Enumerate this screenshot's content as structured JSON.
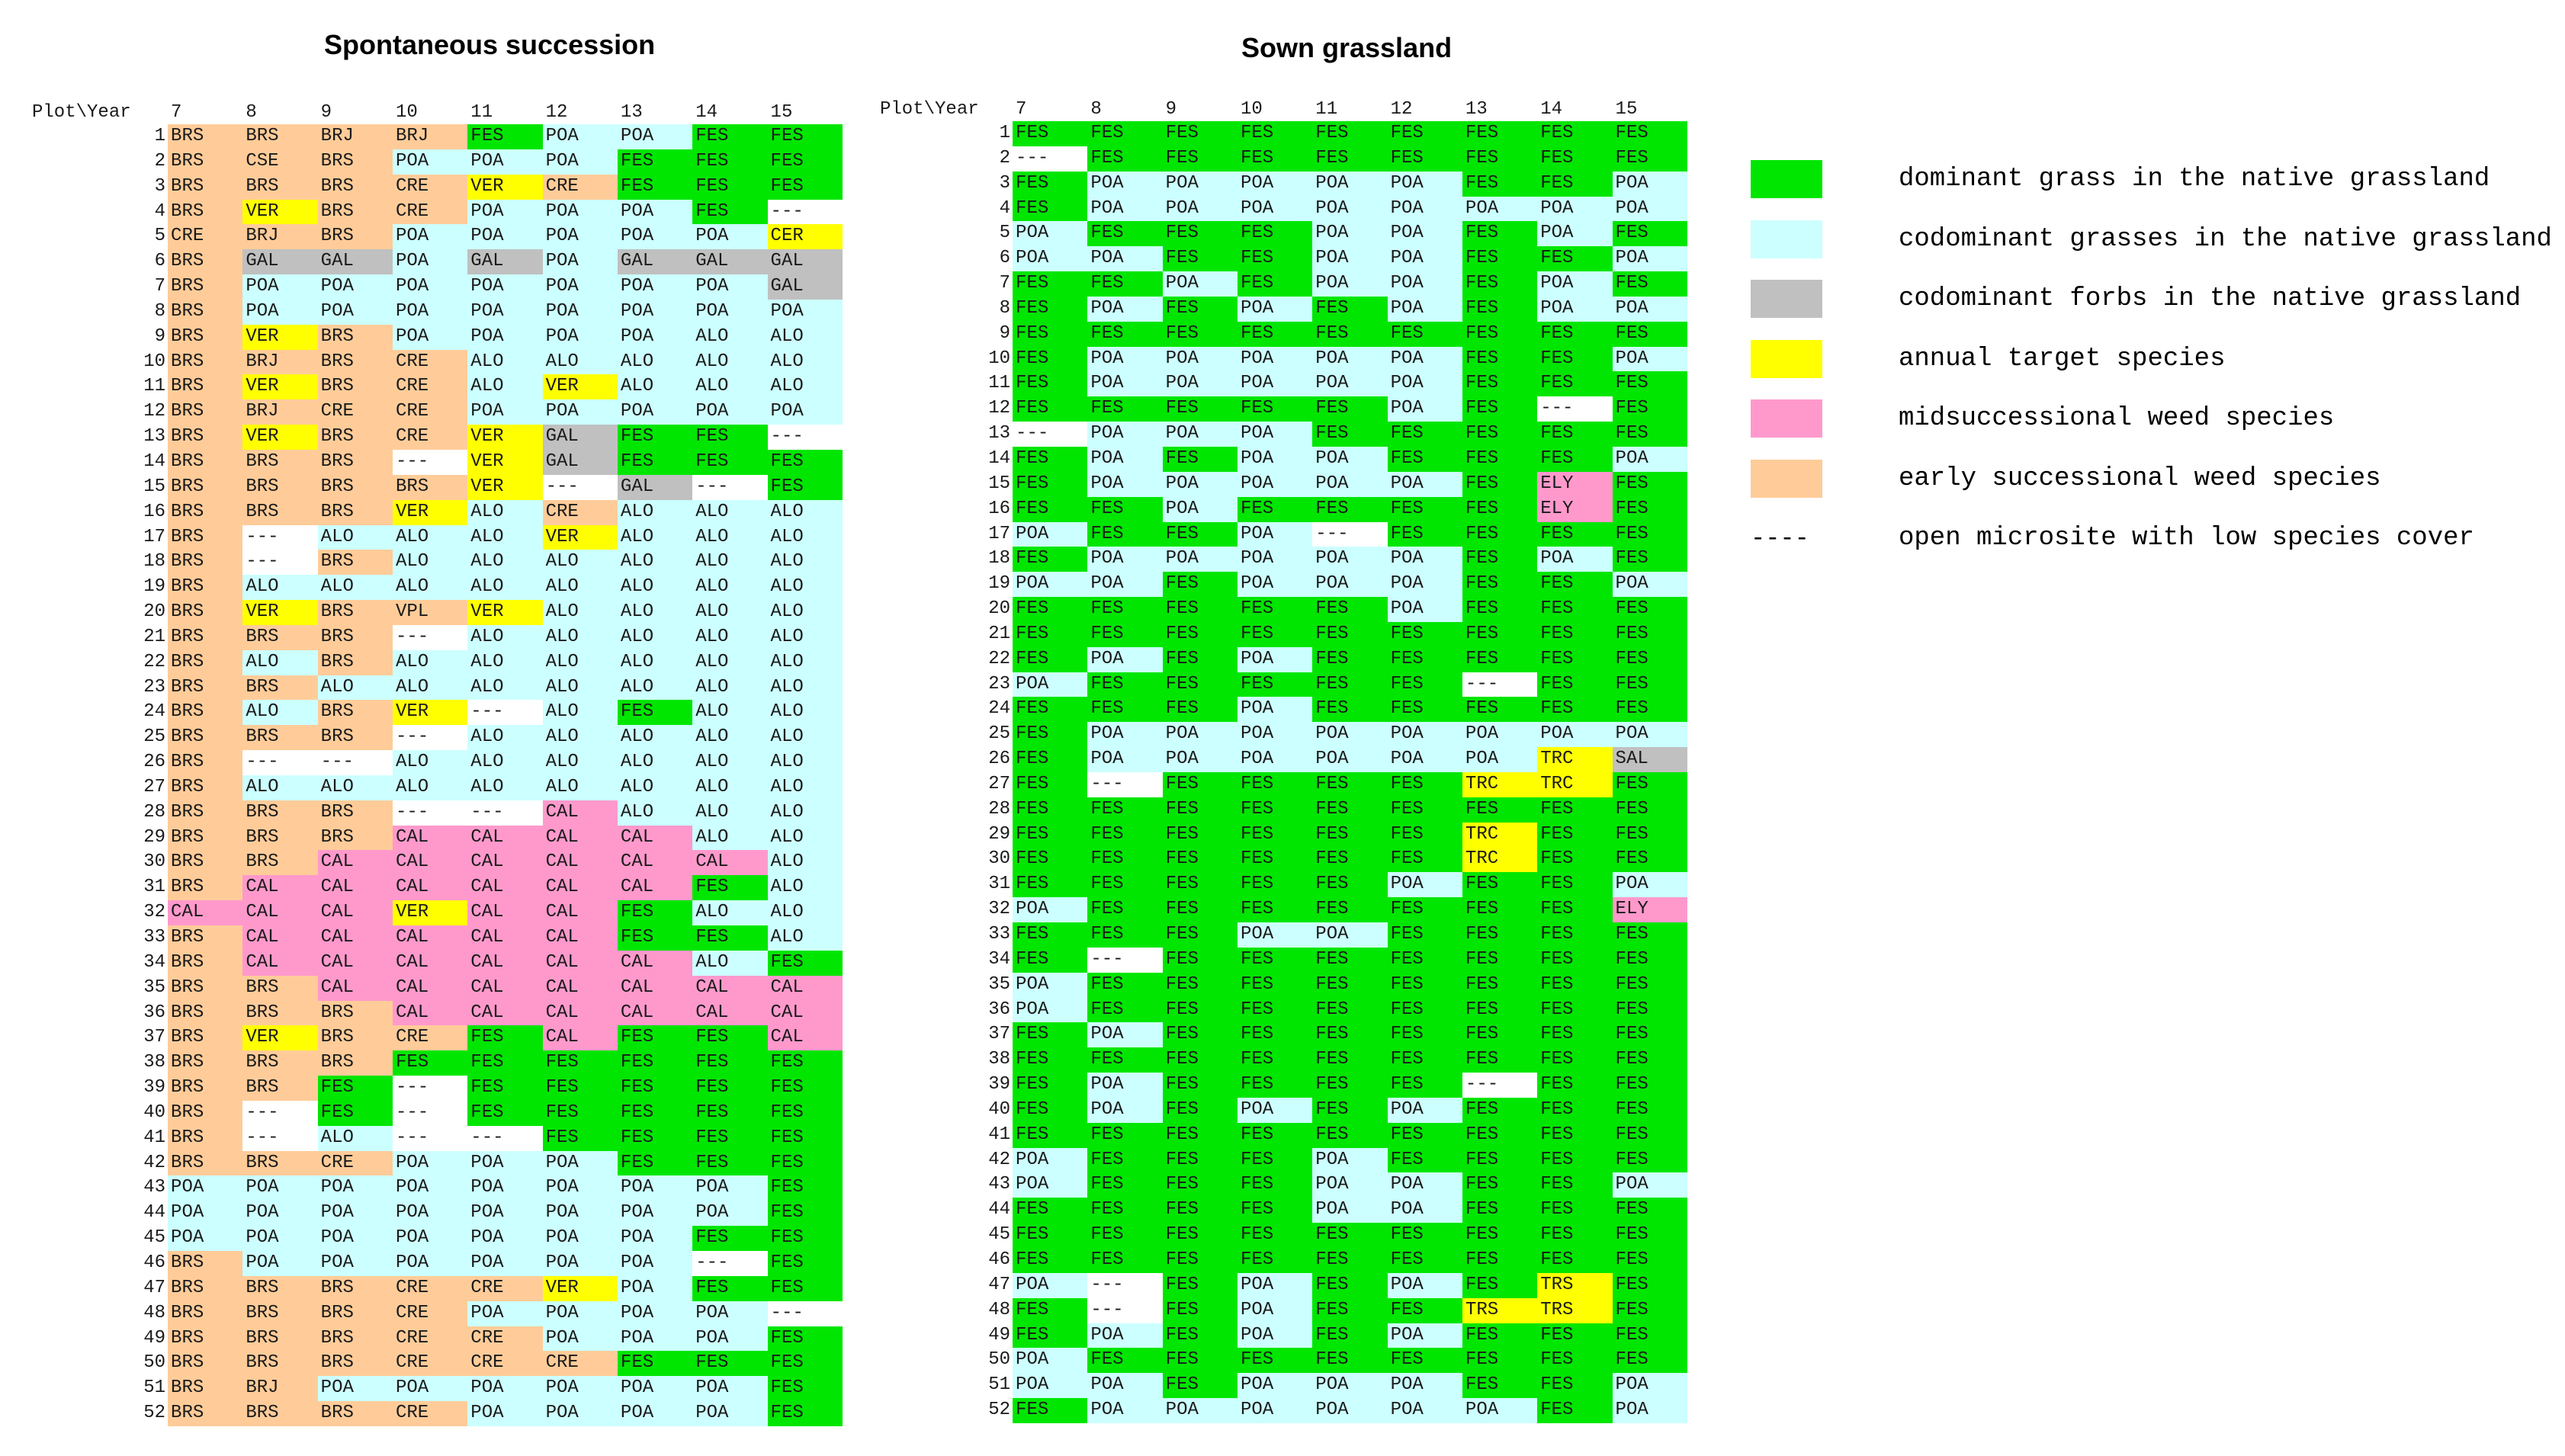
{
  "colors": {
    "FES": "#00e600",
    "ALO": "#ccffff",
    "POA": "#ccffff",
    "GAL": "#c0c0c0",
    "SAL": "#c0c0c0",
    "VER": "#ffff00",
    "TRC": "#ffff00",
    "TRS": "#ffff00",
    "CER": "#ffff00",
    "VPL": "#ffcc99",
    "CAL": "#ff99cc",
    "ELY": "#ff99cc",
    "BRS": "#ffcc99",
    "BRJ": "#ffcc99",
    "CSE": "#ffcc99",
    "CRE": "#ffcc99",
    "---": "#ffffff"
  },
  "panels": [
    {
      "title": "Spontaneous succession",
      "header_label": "Plot\\Year",
      "years": [
        "7",
        "8",
        "9",
        "10",
        "11",
        "12",
        "13",
        "14",
        "15"
      ],
      "rows": [
        [
          "BRS",
          "BRS",
          "BRJ",
          "BRJ",
          "FES",
          "POA",
          "POA",
          "FES",
          "FES"
        ],
        [
          "BRS",
          "CSE",
          "BRS",
          "POA",
          "POA",
          "POA",
          "FES",
          "FES",
          "FES"
        ],
        [
          "BRS",
          "BRS",
          "BRS",
          "CRE",
          "VER",
          "CRE",
          "FES",
          "FES",
          "FES"
        ],
        [
          "BRS",
          "VER",
          "BRS",
          "CRE",
          "POA",
          "POA",
          "POA",
          "FES",
          "---"
        ],
        [
          "CRE",
          "BRJ",
          "BRS",
          "POA",
          "POA",
          "POA",
          "POA",
          "POA",
          "CER"
        ],
        [
          "BRS",
          "GAL",
          "GAL",
          "POA",
          "GAL",
          "POA",
          "GAL",
          "GAL",
          "GAL"
        ],
        [
          "BRS",
          "POA",
          "POA",
          "POA",
          "POA",
          "POA",
          "POA",
          "POA",
          "GAL"
        ],
        [
          "BRS",
          "POA",
          "POA",
          "POA",
          "POA",
          "POA",
          "POA",
          "POA",
          "POA"
        ],
        [
          "BRS",
          "VER",
          "BRS",
          "POA",
          "POA",
          "POA",
          "POA",
          "ALO",
          "ALO"
        ],
        [
          "BRS",
          "BRJ",
          "BRS",
          "CRE",
          "ALO",
          "ALO",
          "ALO",
          "ALO",
          "ALO"
        ],
        [
          "BRS",
          "VER",
          "BRS",
          "CRE",
          "ALO",
          "VER",
          "ALO",
          "ALO",
          "ALO"
        ],
        [
          "BRS",
          "BRJ",
          "CRE",
          "CRE",
          "POA",
          "POA",
          "POA",
          "POA",
          "POA"
        ],
        [
          "BRS",
          "VER",
          "BRS",
          "CRE",
          "VER",
          "GAL",
          "FES",
          "FES",
          "---"
        ],
        [
          "BRS",
          "BRS",
          "BRS",
          "---",
          "VER",
          "GAL",
          "FES",
          "FES",
          "FES"
        ],
        [
          "BRS",
          "BRS",
          "BRS",
          "BRS",
          "VER",
          "---",
          "GAL",
          "---",
          "FES"
        ],
        [
          "BRS",
          "BRS",
          "BRS",
          "VER",
          "ALO",
          "CRE",
          "ALO",
          "ALO",
          "ALO"
        ],
        [
          "BRS",
          "---",
          "ALO",
          "ALO",
          "ALO",
          "VER",
          "ALO",
          "ALO",
          "ALO"
        ],
        [
          "BRS",
          "---",
          "BRS",
          "ALO",
          "ALO",
          "ALO",
          "ALO",
          "ALO",
          "ALO"
        ],
        [
          "BRS",
          "ALO",
          "ALO",
          "ALO",
          "ALO",
          "ALO",
          "ALO",
          "ALO",
          "ALO"
        ],
        [
          "BRS",
          "VER",
          "BRS",
          "VPL",
          "VER",
          "ALO",
          "ALO",
          "ALO",
          "ALO"
        ],
        [
          "BRS",
          "BRS",
          "BRS",
          "---",
          "ALO",
          "ALO",
          "ALO",
          "ALO",
          "ALO"
        ],
        [
          "BRS",
          "ALO",
          "BRS",
          "ALO",
          "ALO",
          "ALO",
          "ALO",
          "ALO",
          "ALO"
        ],
        [
          "BRS",
          "BRS",
          "ALO",
          "ALO",
          "ALO",
          "ALO",
          "ALO",
          "ALO",
          "ALO"
        ],
        [
          "BRS",
          "ALO",
          "BRS",
          "VER",
          "---",
          "ALO",
          "FES",
          "ALO",
          "ALO"
        ],
        [
          "BRS",
          "BRS",
          "BRS",
          "---",
          "ALO",
          "ALO",
          "ALO",
          "ALO",
          "ALO"
        ],
        [
          "BRS",
          "---",
          "---",
          "ALO",
          "ALO",
          "ALO",
          "ALO",
          "ALO",
          "ALO"
        ],
        [
          "BRS",
          "ALO",
          "ALO",
          "ALO",
          "ALO",
          "ALO",
          "ALO",
          "ALO",
          "ALO"
        ],
        [
          "BRS",
          "BRS",
          "BRS",
          "---",
          "---",
          "CAL",
          "ALO",
          "ALO",
          "ALO"
        ],
        [
          "BRS",
          "BRS",
          "BRS",
          "CAL",
          "CAL",
          "CAL",
          "CAL",
          "ALO",
          "ALO"
        ],
        [
          "BRS",
          "BRS",
          "CAL",
          "CAL",
          "CAL",
          "CAL",
          "CAL",
          "CAL",
          "ALO"
        ],
        [
          "BRS",
          "CAL",
          "CAL",
          "CAL",
          "CAL",
          "CAL",
          "CAL",
          "FES",
          "ALO"
        ],
        [
          "CAL",
          "CAL",
          "CAL",
          "VER",
          "CAL",
          "CAL",
          "FES",
          "ALO",
          "ALO"
        ],
        [
          "BRS",
          "CAL",
          "CAL",
          "CAL",
          "CAL",
          "CAL",
          "FES",
          "FES",
          "ALO"
        ],
        [
          "BRS",
          "CAL",
          "CAL",
          "CAL",
          "CAL",
          "CAL",
          "CAL",
          "ALO",
          "FES"
        ],
        [
          "BRS",
          "BRS",
          "CAL",
          "CAL",
          "CAL",
          "CAL",
          "CAL",
          "CAL",
          "CAL"
        ],
        [
          "BRS",
          "BRS",
          "BRS",
          "CAL",
          "CAL",
          "CAL",
          "CAL",
          "CAL",
          "CAL"
        ],
        [
          "BRS",
          "VER",
          "BRS",
          "CRE",
          "FES",
          "CAL",
          "FES",
          "FES",
          "CAL"
        ],
        [
          "BRS",
          "BRS",
          "BRS",
          "FES",
          "FES",
          "FES",
          "FES",
          "FES",
          "FES"
        ],
        [
          "BRS",
          "BRS",
          "FES",
          "---",
          "FES",
          "FES",
          "FES",
          "FES",
          "FES"
        ],
        [
          "BRS",
          "---",
          "FES",
          "---",
          "FES",
          "FES",
          "FES",
          "FES",
          "FES"
        ],
        [
          "BRS",
          "---",
          "ALO",
          "---",
          "---",
          "FES",
          "FES",
          "FES",
          "FES"
        ],
        [
          "BRS",
          "BRS",
          "CRE",
          "POA",
          "POA",
          "POA",
          "FES",
          "FES",
          "FES"
        ],
        [
          "POA",
          "POA",
          "POA",
          "POA",
          "POA",
          "POA",
          "POA",
          "POA",
          "FES"
        ],
        [
          "POA",
          "POA",
          "POA",
          "POA",
          "POA",
          "POA",
          "POA",
          "POA",
          "FES"
        ],
        [
          "POA",
          "POA",
          "POA",
          "POA",
          "POA",
          "POA",
          "POA",
          "FES",
          "FES"
        ],
        [
          "BRS",
          "POA",
          "POA",
          "POA",
          "POA",
          "POA",
          "POA",
          "---",
          "FES"
        ],
        [
          "BRS",
          "BRS",
          "BRS",
          "CRE",
          "CRE",
          "VER",
          "POA",
          "FES",
          "FES"
        ],
        [
          "BRS",
          "BRS",
          "BRS",
          "CRE",
          "POA",
          "POA",
          "POA",
          "POA",
          "---"
        ],
        [
          "BRS",
          "BRS",
          "BRS",
          "CRE",
          "CRE",
          "POA",
          "POA",
          "POA",
          "FES"
        ],
        [
          "BRS",
          "BRS",
          "BRS",
          "CRE",
          "CRE",
          "CRE",
          "FES",
          "FES",
          "FES"
        ],
        [
          "BRS",
          "BRJ",
          "POA",
          "POA",
          "POA",
          "POA",
          "POA",
          "POA",
          "FES"
        ],
        [
          "BRS",
          "BRS",
          "BRS",
          "CRE",
          "POA",
          "POA",
          "POA",
          "POA",
          "FES"
        ]
      ]
    },
    {
      "title": "Sown grassland",
      "header_label": "Plot\\Year",
      "years": [
        "7",
        "8",
        "9",
        "10",
        "11",
        "12",
        "13",
        "14",
        "15"
      ],
      "rows": [
        [
          "FES",
          "FES",
          "FES",
          "FES",
          "FES",
          "FES",
          "FES",
          "FES",
          "FES"
        ],
        [
          "---",
          "FES",
          "FES",
          "FES",
          "FES",
          "FES",
          "FES",
          "FES",
          "FES"
        ],
        [
          "FES",
          "POA",
          "POA",
          "POA",
          "POA",
          "POA",
          "FES",
          "FES",
          "POA"
        ],
        [
          "FES",
          "POA",
          "POA",
          "POA",
          "POA",
          "POA",
          "POA",
          "POA",
          "POA"
        ],
        [
          "POA",
          "FES",
          "FES",
          "FES",
          "POA",
          "POA",
          "FES",
          "POA",
          "FES"
        ],
        [
          "POA",
          "POA",
          "FES",
          "FES",
          "POA",
          "POA",
          "FES",
          "FES",
          "POA"
        ],
        [
          "FES",
          "FES",
          "POA",
          "FES",
          "POA",
          "POA",
          "FES",
          "POA",
          "FES"
        ],
        [
          "FES",
          "POA",
          "FES",
          "POA",
          "FES",
          "POA",
          "FES",
          "POA",
          "POA"
        ],
        [
          "FES",
          "FES",
          "FES",
          "FES",
          "FES",
          "FES",
          "FES",
          "FES",
          "FES"
        ],
        [
          "FES",
          "POA",
          "POA",
          "POA",
          "POA",
          "POA",
          "FES",
          "FES",
          "POA"
        ],
        [
          "FES",
          "POA",
          "POA",
          "POA",
          "POA",
          "POA",
          "FES",
          "FES",
          "FES"
        ],
        [
          "FES",
          "FES",
          "FES",
          "FES",
          "FES",
          "POA",
          "FES",
          "---",
          "FES"
        ],
        [
          "---",
          "POA",
          "POA",
          "POA",
          "FES",
          "FES",
          "FES",
          "FES",
          "FES"
        ],
        [
          "FES",
          "POA",
          "FES",
          "POA",
          "POA",
          "FES",
          "FES",
          "FES",
          "POA"
        ],
        [
          "FES",
          "POA",
          "POA",
          "POA",
          "POA",
          "POA",
          "FES",
          "ELY",
          "FES"
        ],
        [
          "FES",
          "FES",
          "POA",
          "FES",
          "FES",
          "FES",
          "FES",
          "ELY",
          "FES"
        ],
        [
          "POA",
          "FES",
          "FES",
          "POA",
          "---",
          "FES",
          "FES",
          "FES",
          "FES"
        ],
        [
          "FES",
          "POA",
          "POA",
          "POA",
          "POA",
          "POA",
          "FES",
          "POA",
          "FES"
        ],
        [
          "POA",
          "POA",
          "FES",
          "POA",
          "POA",
          "POA",
          "FES",
          "FES",
          "POA"
        ],
        [
          "FES",
          "FES",
          "FES",
          "FES",
          "FES",
          "POA",
          "FES",
          "FES",
          "FES"
        ],
        [
          "FES",
          "FES",
          "FES",
          "FES",
          "FES",
          "FES",
          "FES",
          "FES",
          "FES"
        ],
        [
          "FES",
          "POA",
          "FES",
          "POA",
          "FES",
          "FES",
          "FES",
          "FES",
          "FES"
        ],
        [
          "POA",
          "FES",
          "FES",
          "FES",
          "FES",
          "FES",
          "---",
          "FES",
          "FES"
        ],
        [
          "FES",
          "FES",
          "FES",
          "POA",
          "FES",
          "FES",
          "FES",
          "FES",
          "FES"
        ],
        [
          "FES",
          "POA",
          "POA",
          "POA",
          "POA",
          "POA",
          "POA",
          "POA",
          "POA"
        ],
        [
          "FES",
          "POA",
          "POA",
          "POA",
          "POA",
          "POA",
          "POA",
          "TRC",
          "SAL"
        ],
        [
          "FES",
          "---",
          "FES",
          "FES",
          "FES",
          "FES",
          "TRC",
          "TRC",
          "FES"
        ],
        [
          "FES",
          "FES",
          "FES",
          "FES",
          "FES",
          "FES",
          "FES",
          "FES",
          "FES"
        ],
        [
          "FES",
          "FES",
          "FES",
          "FES",
          "FES",
          "FES",
          "TRC",
          "FES",
          "FES"
        ],
        [
          "FES",
          "FES",
          "FES",
          "FES",
          "FES",
          "FES",
          "TRC",
          "FES",
          "FES"
        ],
        [
          "FES",
          "FES",
          "FES",
          "FES",
          "FES",
          "POA",
          "FES",
          "FES",
          "POA"
        ],
        [
          "POA",
          "FES",
          "FES",
          "FES",
          "FES",
          "FES",
          "FES",
          "FES",
          "ELY"
        ],
        [
          "FES",
          "FES",
          "FES",
          "POA",
          "POA",
          "FES",
          "FES",
          "FES",
          "FES"
        ],
        [
          "FES",
          "---",
          "FES",
          "FES",
          "FES",
          "FES",
          "FES",
          "FES",
          "FES"
        ],
        [
          "POA",
          "FES",
          "FES",
          "FES",
          "FES",
          "FES",
          "FES",
          "FES",
          "FES"
        ],
        [
          "POA",
          "FES",
          "FES",
          "FES",
          "FES",
          "FES",
          "FES",
          "FES",
          "FES"
        ],
        [
          "FES",
          "POA",
          "FES",
          "FES",
          "FES",
          "FES",
          "FES",
          "FES",
          "FES"
        ],
        [
          "FES",
          "FES",
          "FES",
          "FES",
          "FES",
          "FES",
          "FES",
          "FES",
          "FES"
        ],
        [
          "FES",
          "POA",
          "FES",
          "FES",
          "FES",
          "FES",
          "---",
          "FES",
          "FES"
        ],
        [
          "FES",
          "POA",
          "FES",
          "POA",
          "FES",
          "POA",
          "FES",
          "FES",
          "FES"
        ],
        [
          "FES",
          "FES",
          "FES",
          "FES",
          "FES",
          "FES",
          "FES",
          "FES",
          "FES"
        ],
        [
          "POA",
          "FES",
          "FES",
          "FES",
          "POA",
          "FES",
          "FES",
          "FES",
          "FES"
        ],
        [
          "POA",
          "FES",
          "FES",
          "FES",
          "POA",
          "POA",
          "FES",
          "FES",
          "POA"
        ],
        [
          "FES",
          "FES",
          "FES",
          "FES",
          "POA",
          "POA",
          "FES",
          "FES",
          "FES"
        ],
        [
          "FES",
          "FES",
          "FES",
          "FES",
          "FES",
          "FES",
          "FES",
          "FES",
          "FES"
        ],
        [
          "FES",
          "FES",
          "FES",
          "FES",
          "FES",
          "FES",
          "FES",
          "FES",
          "FES"
        ],
        [
          "POA",
          "---",
          "FES",
          "POA",
          "FES",
          "POA",
          "FES",
          "TRS",
          "FES"
        ],
        [
          "FES",
          "---",
          "FES",
          "POA",
          "FES",
          "FES",
          "TRS",
          "TRS",
          "FES"
        ],
        [
          "FES",
          "POA",
          "FES",
          "POA",
          "FES",
          "POA",
          "FES",
          "FES",
          "FES"
        ],
        [
          "POA",
          "FES",
          "FES",
          "FES",
          "FES",
          "FES",
          "FES",
          "FES",
          "FES"
        ],
        [
          "POA",
          "POA",
          "FES",
          "POA",
          "POA",
          "POA",
          "FES",
          "FES",
          "POA"
        ],
        [
          "FES",
          "POA",
          "POA",
          "POA",
          "POA",
          "POA",
          "POA",
          "FES",
          "POA"
        ]
      ]
    }
  ],
  "legend": [
    {
      "label": "dominant grass in the native grassland",
      "color": "#00e600",
      "symbol": null
    },
    {
      "label": "codominant grasses in the native grassland",
      "color": "#ccffff",
      "symbol": null
    },
    {
      "label": "codominant forbs in the native grassland",
      "color": "#c0c0c0",
      "symbol": null
    },
    {
      "label": "annual target species",
      "color": "#ffff00",
      "symbol": null
    },
    {
      "label": "midsuccessional weed species",
      "color": "#ff99cc",
      "symbol": null
    },
    {
      "label": "early successional weed species",
      "color": "#ffcc99",
      "symbol": null
    },
    {
      "label": "open microsite with low species cover",
      "color": null,
      "symbol": "----"
    }
  ]
}
